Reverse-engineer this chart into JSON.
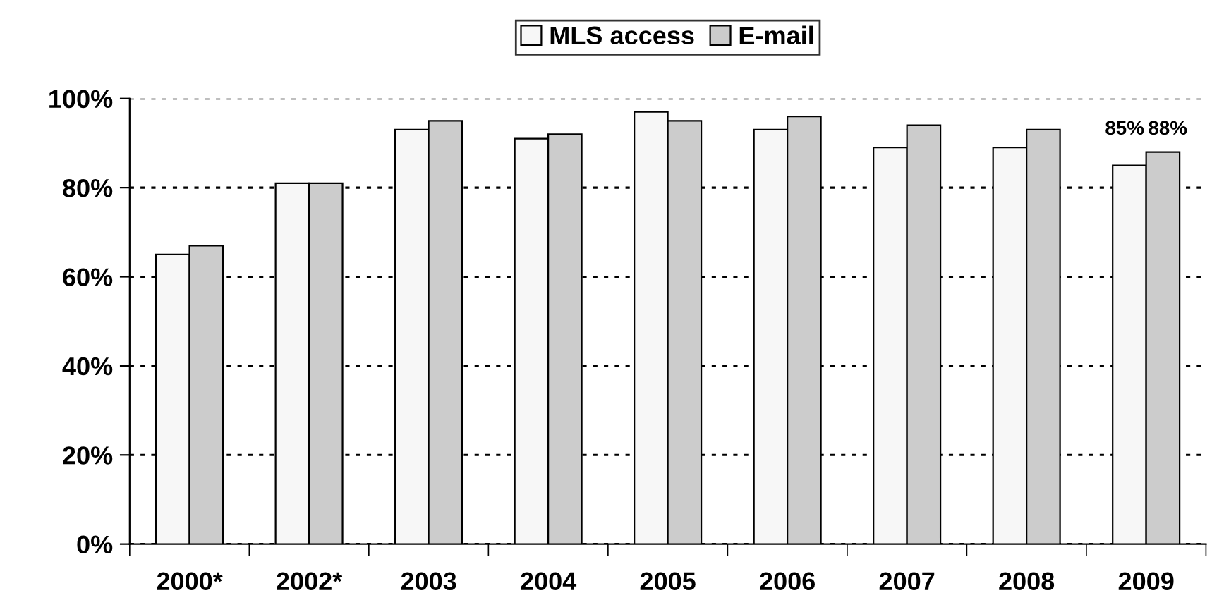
{
  "chart_data": {
    "type": "bar",
    "categories": [
      "2000*",
      "2002*",
      "2003",
      "2004",
      "2005",
      "2006",
      "2007",
      "2008",
      "2009"
    ],
    "series": [
      {
        "name": "MLS access",
        "color": "#f7f7f7",
        "values": [
          65,
          81,
          93,
          91,
          97,
          93,
          89,
          89,
          85
        ],
        "value_labels": [
          null,
          null,
          null,
          null,
          null,
          null,
          null,
          null,
          "85%"
        ]
      },
      {
        "name": "E-mail",
        "color": "#cccccc",
        "values": [
          67,
          81,
          95,
          92,
          95,
          96,
          94,
          93,
          88
        ],
        "value_labels": [
          null,
          null,
          null,
          null,
          null,
          null,
          null,
          null,
          "88%"
        ]
      }
    ],
    "ylim": [
      0,
      100
    ],
    "yticks": [
      {
        "value": 0,
        "label": "0%"
      },
      {
        "value": 20,
        "label": "20%"
      },
      {
        "value": 40,
        "label": "40%"
      },
      {
        "value": 60,
        "label": "60%"
      },
      {
        "value": 80,
        "label": "80%"
      },
      {
        "value": 100,
        "label": "100%"
      }
    ],
    "grid": "y",
    "line_style": "dotted",
    "legend": "top"
  }
}
